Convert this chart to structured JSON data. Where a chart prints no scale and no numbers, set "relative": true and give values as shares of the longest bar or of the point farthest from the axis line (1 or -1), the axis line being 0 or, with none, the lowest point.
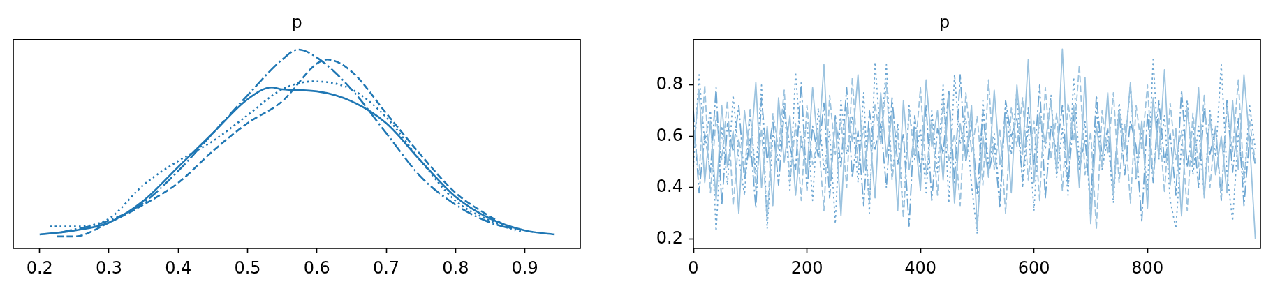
{
  "chart_data": [
    {
      "type": "line",
      "title": "p",
      "relative": true,
      "xlim": [
        0.162,
        0.98
      ],
      "xticks": [
        0.2,
        0.3,
        0.4,
        0.5,
        0.6,
        0.7,
        0.8,
        0.9
      ],
      "tick_labels": "x",
      "series": [
        {
          "color": "#1f77b4",
          "line_style": "solid",
          "x": [
            0.2,
            0.25,
            0.3,
            0.35,
            0.4,
            0.45,
            0.5,
            0.535,
            0.55,
            0.6,
            0.65,
            0.7,
            0.75,
            0.8,
            0.85,
            0.9,
            0.943
          ],
          "values": [
            0.07,
            0.09,
            0.13,
            0.24,
            0.41,
            0.58,
            0.75,
            0.81,
            0.8,
            0.79,
            0.74,
            0.63,
            0.44,
            0.26,
            0.15,
            0.09,
            0.07
          ]
        },
        {
          "color": "#1f77b4",
          "line_style": "dashed",
          "x": [
            0.225,
            0.25,
            0.3,
            0.35,
            0.4,
            0.45,
            0.5,
            0.55,
            0.6,
            0.615,
            0.65,
            0.7,
            0.75,
            0.8,
            0.85,
            0.885
          ],
          "values": [
            0.06,
            0.06,
            0.13,
            0.22,
            0.33,
            0.49,
            0.63,
            0.74,
            0.93,
            0.95,
            0.89,
            0.68,
            0.47,
            0.28,
            0.16,
            0.09
          ]
        },
        {
          "color": "#1f77b4",
          "line_style": "dotted",
          "x": [
            0.215,
            0.25,
            0.3,
            0.35,
            0.4,
            0.45,
            0.5,
            0.55,
            0.595,
            0.65,
            0.7,
            0.75,
            0.8,
            0.85,
            0.895
          ],
          "values": [
            0.11,
            0.11,
            0.15,
            0.32,
            0.44,
            0.54,
            0.67,
            0.8,
            0.84,
            0.8,
            0.66,
            0.44,
            0.24,
            0.14,
            0.085
          ]
        },
        {
          "color": "#1f77b4",
          "line_style": "dashdot",
          "x": [
            0.23,
            0.3,
            0.35,
            0.4,
            0.45,
            0.5,
            0.55,
            0.573,
            0.6,
            0.65,
            0.7,
            0.75,
            0.8,
            0.85,
            0.88
          ],
          "values": [
            0.08,
            0.14,
            0.23,
            0.39,
            0.58,
            0.77,
            0.95,
            1.0,
            0.96,
            0.8,
            0.58,
            0.36,
            0.22,
            0.13,
            0.1
          ]
        }
      ]
    },
    {
      "type": "line",
      "title": "p",
      "xlim": [
        0,
        999
      ],
      "xticks": [
        0,
        200,
        400,
        600,
        800
      ],
      "ylim": [
        0.163,
        0.977
      ],
      "yticks": [
        0.2,
        0.4,
        0.6,
        0.8
      ],
      "x": [
        0,
        10,
        20,
        30,
        40,
        50,
        60,
        70,
        80,
        90,
        100,
        110,
        120,
        130,
        140,
        150,
        160,
        170,
        180,
        190,
        200,
        210,
        220,
        230,
        240,
        250,
        260,
        270,
        280,
        290,
        300,
        310,
        320,
        330,
        340,
        350,
        360,
        370,
        380,
        390,
        400,
        410,
        420,
        430,
        440,
        450,
        460,
        470,
        480,
        490,
        500,
        510,
        520,
        530,
        540,
        550,
        560,
        570,
        580,
        590,
        600,
        610,
        620,
        630,
        640,
        650,
        660,
        670,
        680,
        690,
        700,
        710,
        720,
        730,
        740,
        750,
        760,
        770,
        780,
        790,
        800,
        810,
        820,
        830,
        840,
        850,
        860,
        870,
        880,
        890,
        900,
        910,
        920,
        930,
        940,
        950,
        960,
        970,
        980,
        990
      ],
      "series": [
        {
          "color": "#9cc3df",
          "line_style": "solid",
          "values": [
            0.55,
            0.78,
            0.42,
            0.66,
            0.35,
            0.72,
            0.48,
            0.62,
            0.3,
            0.7,
            0.52,
            0.81,
            0.4,
            0.64,
            0.33,
            0.75,
            0.5,
            0.68,
            0.37,
            0.6,
            0.45,
            0.79,
            0.55,
            0.88,
            0.41,
            0.66,
            0.29,
            0.71,
            0.58,
            0.84,
            0.46,
            0.63,
            0.36,
            0.77,
            0.52,
            0.69,
            0.31,
            0.74,
            0.47,
            0.61,
            0.39,
            0.82,
            0.56,
            0.7,
            0.43,
            0.76,
            0.34,
            0.65,
            0.51,
            0.72,
            0.24,
            0.6,
            0.44,
            0.78,
            0.49,
            0.67,
            0.38,
            0.8,
            0.53,
            0.9,
            0.42,
            0.69,
            0.57,
            0.74,
            0.46,
            0.94,
            0.5,
            0.72,
            0.4,
            0.83,
            0.26,
            0.64,
            0.48,
            0.77,
            0.37,
            0.7,
            0.55,
            0.81,
            0.44,
            0.66,
            0.32,
            0.75,
            0.52,
            0.86,
            0.41,
            0.63,
            0.29,
            0.71,
            0.49,
            0.79,
            0.36,
            0.68,
            0.45,
            0.6,
            0.38,
            0.74,
            0.47,
            0.84,
            0.58,
            0.2
          ]
        },
        {
          "color": "#9cc3df",
          "line_style": "dashed",
          "values": [
            0.62,
            0.45,
            0.8,
            0.38,
            0.68,
            0.51,
            0.74,
            0.33,
            0.59,
            0.46,
            0.71,
            0.39,
            0.63,
            0.27,
            0.69,
            0.55,
            0.78,
            0.42,
            0.65,
            0.35,
            0.72,
            0.49,
            0.6,
            0.31,
            0.76,
            0.53,
            0.67,
            0.4,
            0.83,
            0.48,
            0.64,
            0.34,
            0.73,
            0.57,
            0.81,
            0.43,
            0.62,
            0.28,
            0.7,
            0.52,
            0.79,
            0.45,
            0.66,
            0.37,
            0.74,
            0.5,
            0.61,
            0.33,
            0.77,
            0.54,
            0.68,
            0.41,
            0.82,
            0.47,
            0.63,
            0.3,
            0.71,
            0.56,
            0.75,
            0.43,
            0.66,
            0.35,
            0.79,
            0.51,
            0.69,
            0.39,
            0.73,
            0.58,
            0.88,
            0.45,
            0.62,
            0.24,
            0.7,
            0.53,
            0.77,
            0.42,
            0.65,
            0.34,
            0.72,
            0.55,
            0.8,
            0.44,
            0.67,
            0.38,
            0.73,
            0.51,
            0.62,
            0.31,
            0.69,
            0.48,
            0.76,
            0.4,
            0.64,
            0.36,
            0.71,
            0.54,
            0.82,
            0.43,
            0.66,
            0.5
          ]
        },
        {
          "color": "#6ea7d3",
          "line_style": "dotted",
          "values": [
            0.48,
            0.84,
            0.57,
            0.7,
            0.23,
            0.64,
            0.41,
            0.76,
            0.52,
            0.37,
            0.69,
            0.45,
            0.8,
            0.24,
            0.61,
            0.5,
            0.73,
            0.39,
            0.85,
            0.55,
            0.66,
            0.35,
            0.71,
            0.47,
            0.62,
            0.26,
            0.74,
            0.53,
            0.68,
            0.42,
            0.77,
            0.3,
            0.89,
            0.58,
            0.88,
            0.44,
            0.65,
            0.29,
            0.72,
            0.51,
            0.63,
            0.38,
            0.7,
            0.46,
            0.8,
            0.34,
            0.84,
            0.57,
            0.67,
            0.41,
            0.22,
            0.74,
            0.49,
            0.61,
            0.35,
            0.72,
            0.53,
            0.78,
            0.4,
            0.64,
            0.31,
            0.69,
            0.55,
            0.76,
            0.44,
            0.63,
            0.37,
            0.83,
            0.5,
            0.66,
            0.28,
            0.71,
            0.47,
            0.6,
            0.34,
            0.73,
            0.56,
            0.8,
            0.43,
            0.62,
            0.39,
            0.9,
            0.51,
            0.68,
            0.35,
            0.24,
            0.57,
            0.74,
            0.45,
            0.64,
            0.37,
            0.7,
            0.52,
            0.88,
            0.46,
            0.27,
            0.61,
            0.41,
            0.72,
            0.55
          ]
        },
        {
          "color": "#6ea7d3",
          "line_style": "dashdot",
          "values": [
            0.7,
            0.38,
            0.61,
            0.46,
            0.79,
            0.33,
            0.65,
            0.54,
            0.72,
            0.43,
            0.59,
            0.32,
            0.75,
            0.5,
            0.66,
            0.41,
            0.7,
            0.56,
            0.47,
            0.81,
            0.39,
            0.64,
            0.52,
            0.73,
            0.36,
            0.68,
            0.48,
            0.79,
            0.44,
            0.62,
            0.33,
            0.7,
            0.55,
            0.65,
            0.4,
            0.75,
            0.49,
            0.61,
            0.25,
            0.68,
            0.46,
            0.72,
            0.35,
            0.63,
            0.53,
            0.78,
            0.42,
            0.84,
            0.5,
            0.66,
            0.37,
            0.7,
            0.45,
            0.57,
            0.32,
            0.74,
            0.6,
            0.67,
            0.43,
            0.71,
            0.49,
            0.8,
            0.36,
            0.64,
            0.54,
            0.72,
            0.41,
            0.68,
            0.47,
            0.59,
            0.34,
            0.76,
            0.52,
            0.63,
            0.39,
            0.7,
            0.45,
            0.66,
            0.56,
            0.27,
            0.69,
            0.42,
            0.74,
            0.5,
            0.61,
            0.37,
            0.78,
            0.48,
            0.65,
            0.4,
            0.71,
            0.53,
            0.63,
            0.35,
            0.74,
            0.46,
            0.67,
            0.33,
            0.6,
            0.49
          ]
        }
      ]
    }
  ]
}
